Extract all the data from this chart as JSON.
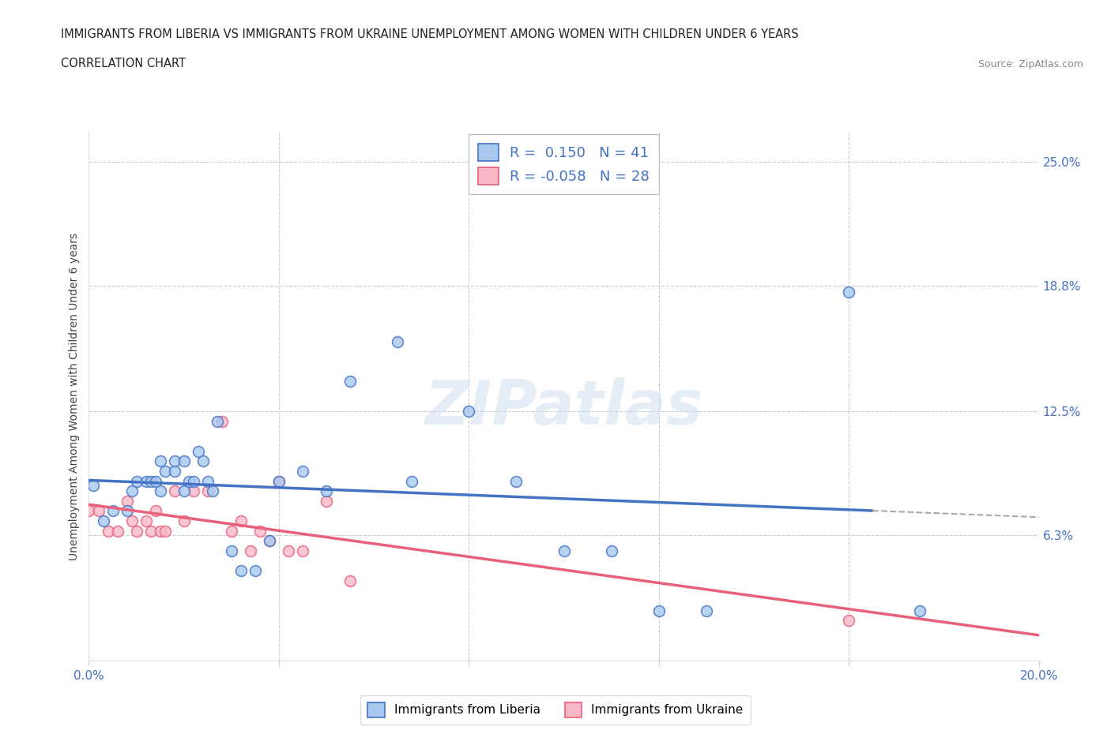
{
  "title_line1": "IMMIGRANTS FROM LIBERIA VS IMMIGRANTS FROM UKRAINE UNEMPLOYMENT AMONG WOMEN WITH CHILDREN UNDER 6 YEARS",
  "title_line2": "CORRELATION CHART",
  "source": "Source: ZipAtlas.com",
  "ylabel": "Unemployment Among Women with Children Under 6 years",
  "watermark": "ZIPatlas",
  "liberia_x": [
    0.001,
    0.003,
    0.005,
    0.008,
    0.009,
    0.01,
    0.012,
    0.013,
    0.014,
    0.015,
    0.015,
    0.016,
    0.018,
    0.018,
    0.02,
    0.02,
    0.021,
    0.022,
    0.023,
    0.024,
    0.025,
    0.026,
    0.027,
    0.03,
    0.032,
    0.035,
    0.038,
    0.04,
    0.045,
    0.05,
    0.055,
    0.065,
    0.068,
    0.08,
    0.09,
    0.1,
    0.11,
    0.12,
    0.13,
    0.16,
    0.175
  ],
  "liberia_y": [
    0.088,
    0.07,
    0.075,
    0.075,
    0.085,
    0.09,
    0.09,
    0.09,
    0.09,
    0.085,
    0.1,
    0.095,
    0.095,
    0.1,
    0.085,
    0.1,
    0.09,
    0.09,
    0.105,
    0.1,
    0.09,
    0.085,
    0.12,
    0.055,
    0.045,
    0.045,
    0.06,
    0.09,
    0.095,
    0.085,
    0.14,
    0.16,
    0.09,
    0.125,
    0.09,
    0.055,
    0.055,
    0.025,
    0.025,
    0.185,
    0.025
  ],
  "ukraine_x": [
    0.0,
    0.002,
    0.004,
    0.006,
    0.008,
    0.009,
    0.01,
    0.012,
    0.013,
    0.014,
    0.015,
    0.016,
    0.018,
    0.02,
    0.022,
    0.025,
    0.028,
    0.03,
    0.032,
    0.034,
    0.036,
    0.038,
    0.04,
    0.042,
    0.045,
    0.05,
    0.055,
    0.16
  ],
  "ukraine_y": [
    0.075,
    0.075,
    0.065,
    0.065,
    0.08,
    0.07,
    0.065,
    0.07,
    0.065,
    0.075,
    0.065,
    0.065,
    0.085,
    0.07,
    0.085,
    0.085,
    0.12,
    0.065,
    0.07,
    0.055,
    0.065,
    0.06,
    0.09,
    0.055,
    0.055,
    0.08,
    0.04,
    0.02
  ],
  "liberia_color": "#A8C8F0",
  "ukraine_color": "#F8B8C8",
  "liberia_line_color": "#4472C4",
  "ukraine_line_color": "#E8607A",
  "R_liberia": 0.15,
  "N_liberia": 41,
  "R_ukraine": -0.058,
  "N_ukraine": 28,
  "xlim": [
    0.0,
    0.2
  ],
  "ylim": [
    0.0,
    0.265
  ],
  "right_yticks": [
    0.063,
    0.125,
    0.188,
    0.25
  ],
  "right_yticklabels": [
    "6.3%",
    "12.5%",
    "18.8%",
    "25.0%"
  ],
  "grid_color": "#CCCCCC",
  "bg_color": "#FFFFFF",
  "text_color_blue": "#4472C4",
  "title_fontsize": 11,
  "label_fontsize": 10,
  "tick_fontsize": 11
}
